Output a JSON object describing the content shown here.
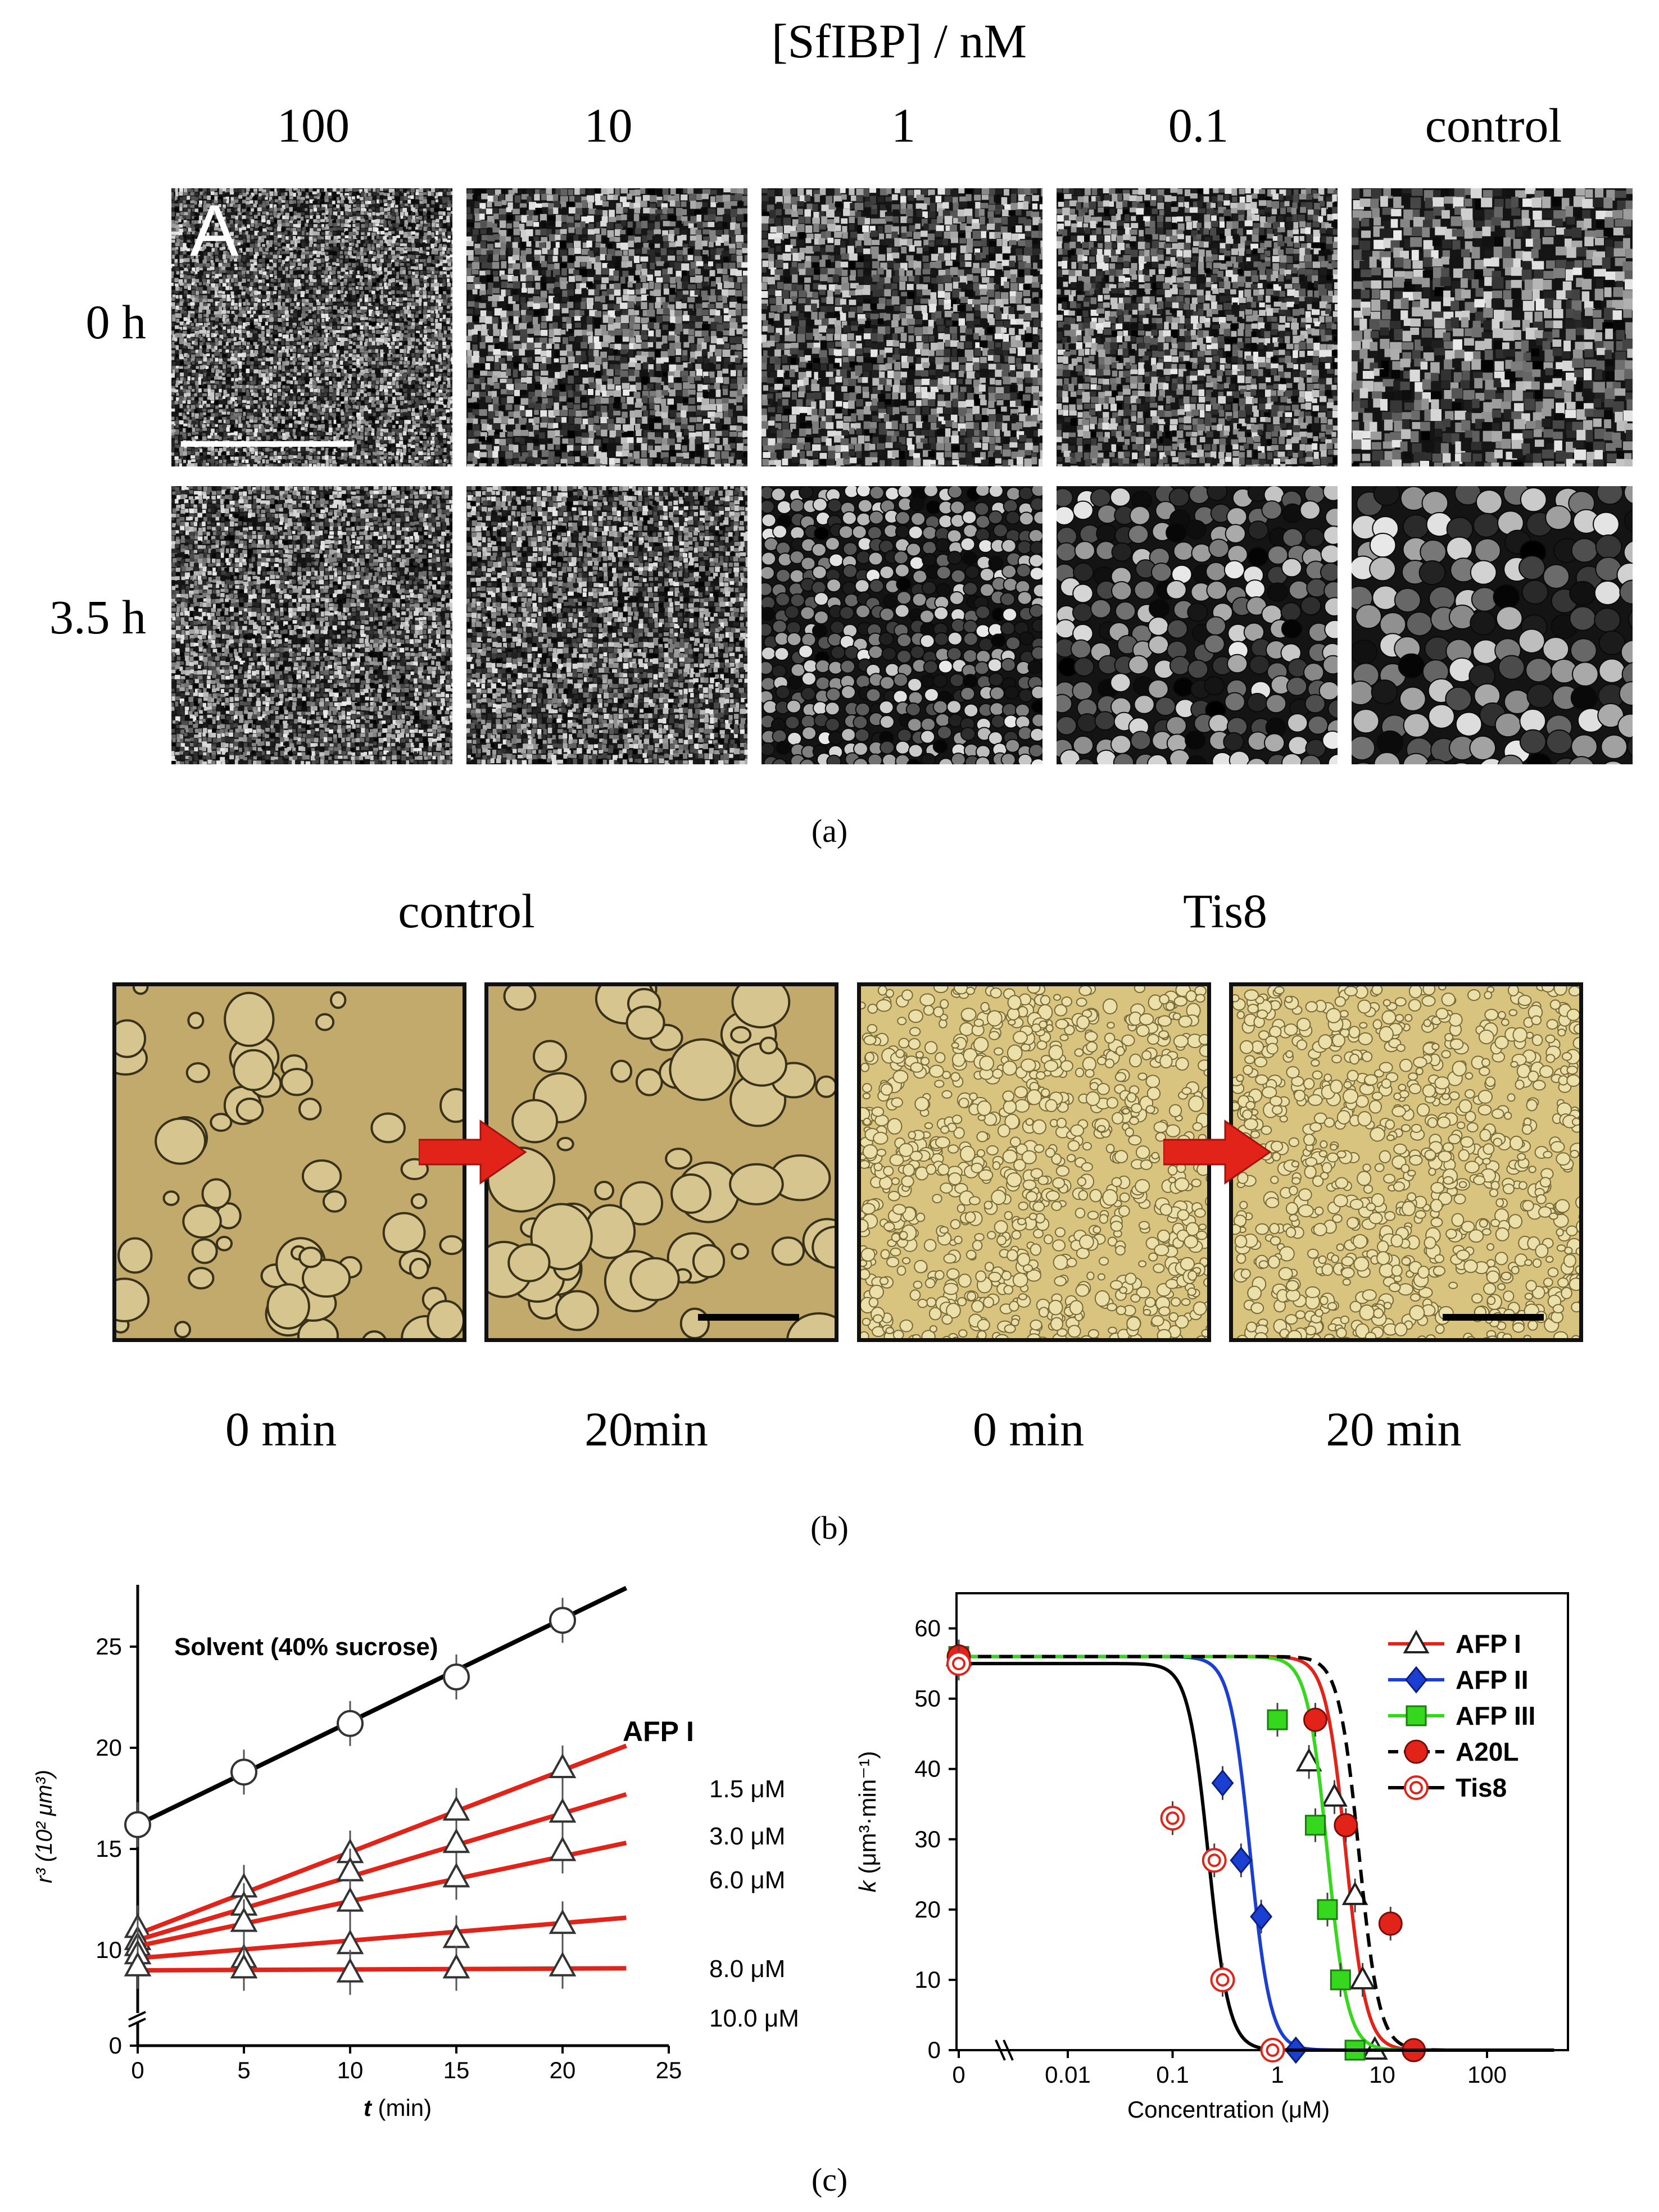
{
  "panel_a": {
    "title": "[SfIBP] / nM",
    "columns": [
      "100",
      "10",
      "1",
      "0.1",
      "control"
    ],
    "rows": [
      "0 h",
      "3.5 h"
    ],
    "inset_letter": "A",
    "caption": "(a)"
  },
  "panel_b": {
    "groups": [
      "control",
      "Tis8"
    ],
    "time_labels": [
      "0 min",
      "20min",
      "0 min",
      "20 min"
    ],
    "caption": "(b)"
  },
  "panel_c": {
    "caption": "(c)",
    "left_chart": {
      "ylabel_html": "r³ (10² μm³)",
      "xlabel_t": "t",
      "xlabel_unit": "(min)",
      "solvent_label": "Solvent (40% sucrose)",
      "legend_title": "AFP I",
      "series_labels": [
        "1.5 μM",
        "3.0 μM",
        "6.0 μM",
        "8.0 μM",
        "10.0 μM"
      ]
    },
    "right_chart": {
      "ylabel_k": "k",
      "ylabel_unit": "(μm³·min⁻¹)",
      "xlabel": "Concentration (μM)",
      "legend": [
        "AFP I",
        "AFP II",
        "AFP III",
        "A20L",
        "Tis8"
      ]
    }
  },
  "chart_data": [
    {
      "type": "line",
      "xlabel": "t (min)",
      "ylabel": "r³ (10² μm³)",
      "xlim": [
        0,
        25
      ],
      "ylim": [
        0,
        27
      ],
      "xticks": [
        "0",
        "5",
        "10",
        "15",
        "20",
        "25"
      ],
      "yticks": [
        "0",
        "10",
        "15",
        "20",
        "25"
      ],
      "x": [
        0,
        5,
        10,
        15,
        20
      ],
      "series": [
        {
          "name": "Solvent (40% sucrose)",
          "color": "#000000",
          "values": [
            16.2,
            18.8,
            21.2,
            23.5,
            26.3
          ],
          "fit": [
            16.2,
            27.9
          ]
        },
        {
          "name": "1.5 μM",
          "color": "#e2231a",
          "values": [
            11.1,
            13.1,
            14.8,
            16.9,
            19.0
          ],
          "fit": [
            10.8,
            20.1
          ]
        },
        {
          "name": "3.0 μM",
          "color": "#e2231a",
          "values": [
            10.5,
            12.2,
            13.9,
            15.3,
            16.8
          ],
          "fit": [
            10.5,
            17.7
          ]
        },
        {
          "name": "6.0 μM",
          "color": "#e2231a",
          "values": [
            10.2,
            11.4,
            12.4,
            13.6,
            14.9
          ],
          "fit": [
            10.2,
            15.3
          ]
        },
        {
          "name": "8.0 μM",
          "color": "#e2231a",
          "values": [
            9.8,
            9.6,
            10.3,
            10.6,
            11.3
          ],
          "fit": [
            9.6,
            11.6
          ]
        },
        {
          "name": "10.0 μM",
          "color": "#e2231a",
          "values": [
            9.2,
            9.1,
            8.9,
            9.1,
            9.2
          ],
          "fit": [
            9.0,
            9.1
          ]
        }
      ],
      "annotations": [
        "Solvent (40% sucrose)",
        "AFP I"
      ]
    },
    {
      "type": "line",
      "xscale": "log",
      "xlabel": "Concentration (μM)",
      "ylabel": "k (μm³·min⁻¹)",
      "ylim": [
        0,
        65
      ],
      "xticks": [
        "0",
        "0.01",
        "0.1",
        "1",
        "10",
        "100"
      ],
      "yticks": [
        "0",
        "10",
        "20",
        "30",
        "40",
        "50",
        "60"
      ],
      "series": [
        {
          "name": "AFP I",
          "color": "#e2231a",
          "marker": "open-triangle",
          "x": [
            0,
            2.0,
            3.5,
            5.5,
            6.5,
            8.5
          ],
          "values": [
            56,
            41,
            36,
            22,
            10,
            0
          ],
          "ec50": 4.5,
          "line": "solid"
        },
        {
          "name": "AFP II",
          "color": "#1a3fd1",
          "marker": "filled-diamond",
          "x": [
            0,
            0.3,
            0.45,
            0.7,
            1.5
          ],
          "values": [
            56,
            38,
            27,
            19,
            0
          ],
          "ec50": 0.55,
          "line": "solid"
        },
        {
          "name": "AFP III",
          "color": "#35d81c",
          "marker": "filled-square",
          "x": [
            0,
            1.0,
            2.3,
            3.0,
            4.0,
            5.5
          ],
          "values": [
            56,
            47,
            32,
            20,
            10,
            0
          ],
          "ec50": 3.0,
          "line": "solid"
        },
        {
          "name": "A20L",
          "color": "#e2231a",
          "marker": "filled-circle",
          "x": [
            0,
            2.3,
            4.5,
            12,
            20
          ],
          "values": [
            56,
            47,
            32,
            18,
            0
          ],
          "ec50": 6.0,
          "line": "dashed"
        },
        {
          "name": "Tis8",
          "color": "#e2231a",
          "marker": "double-open-circle",
          "x": [
            0,
            0.1,
            0.25,
            0.3,
            0.9
          ],
          "values": [
            55,
            33,
            27,
            10,
            0
          ],
          "ec50": 0.22,
          "line": "solid"
        }
      ]
    }
  ]
}
